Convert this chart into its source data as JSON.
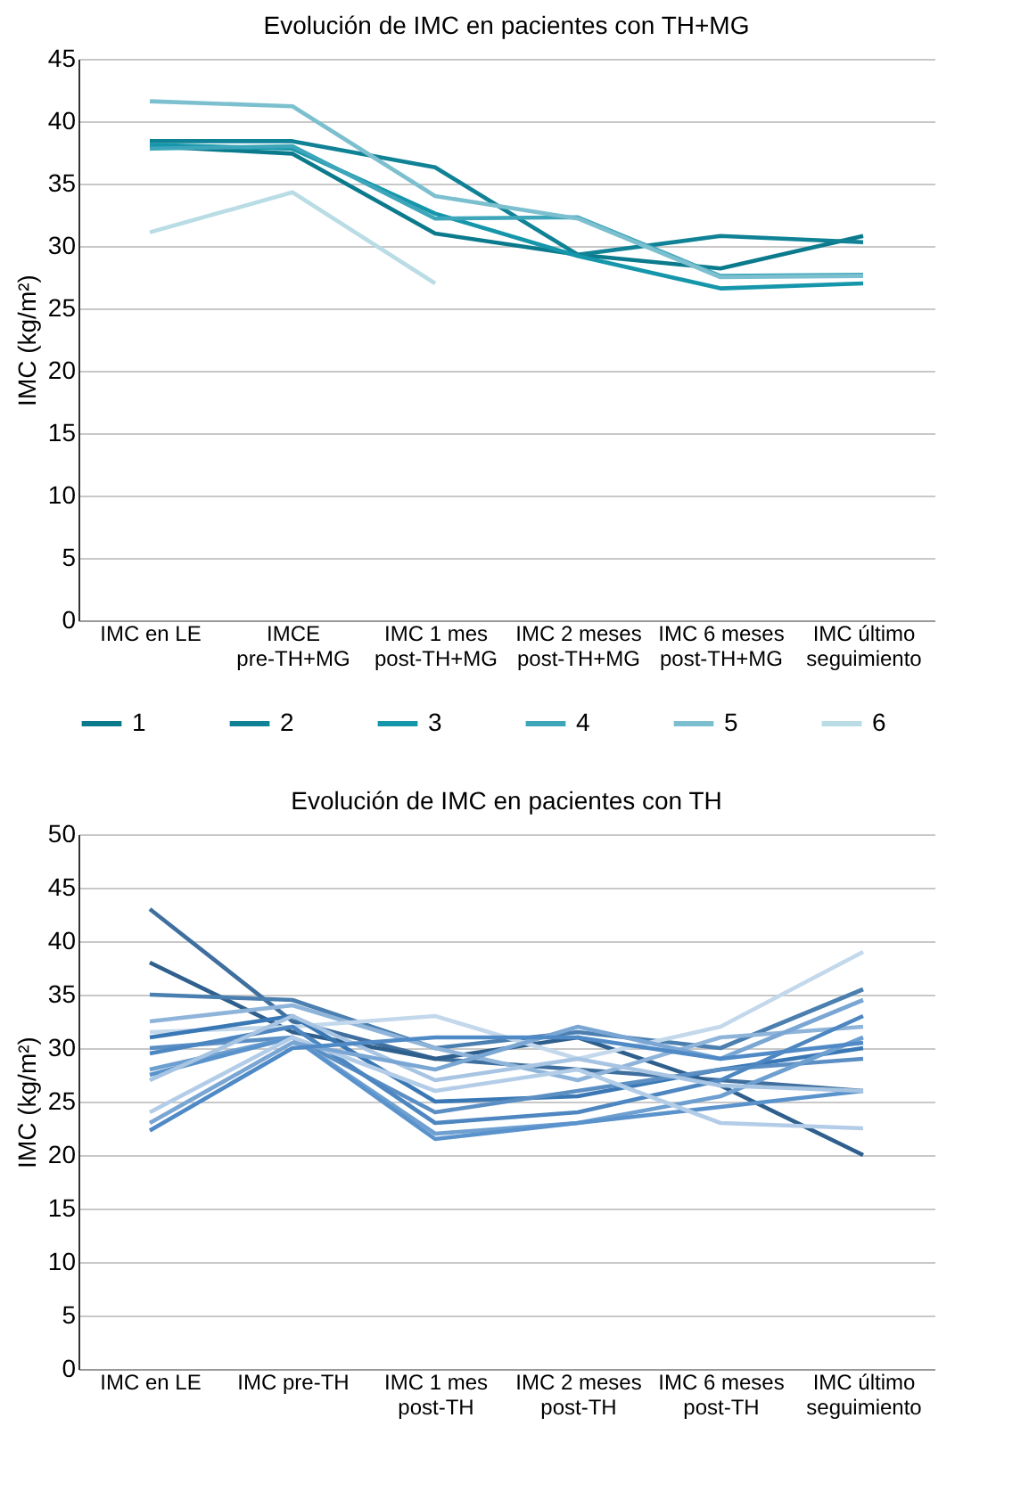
{
  "chart_data": [
    {
      "type": "line",
      "title": "Evolución de IMC en pacientes con TH+MG",
      "ylabel": "IMC (kg/m²)",
      "categories": [
        "IMC en LE",
        "IMCE pre-TH+MG",
        "IMC 1 mes post-TH+MG",
        "IMC 2 meses post-TH+MG",
        "IMC 6 meses post-TH+MG",
        "IMC último seguimiento"
      ],
      "ylim": [
        0,
        45
      ],
      "yticks": [
        0,
        5,
        10,
        15,
        20,
        25,
        30,
        35,
        40,
        45
      ],
      "grid": "y",
      "legend": "bottom",
      "series": [
        {
          "name": "1",
          "color": "#0b7a8c",
          "values": [
            38,
            37.4,
            31,
            29.3,
            28.2,
            30.8
          ]
        },
        {
          "name": "2",
          "color": "#0f8296",
          "values": [
            38.4,
            38.4,
            36.3,
            29.3,
            30.8,
            30.3
          ]
        },
        {
          "name": "3",
          "color": "#1596ab",
          "values": [
            38.1,
            37.8,
            32.6,
            29.2,
            26.6,
            27
          ]
        },
        {
          "name": "4",
          "color": "#3ea6ba",
          "values": [
            37.8,
            38,
            32.2,
            32.3,
            27.6,
            27.7
          ]
        },
        {
          "name": "5",
          "color": "#7cc0cf",
          "values": [
            41.6,
            41.2,
            34,
            32.2,
            27.5,
            27.6
          ]
        },
        {
          "name": "6",
          "color": "#b9dce5",
          "values": [
            31.1,
            34.3,
            27,
            null,
            null,
            null
          ]
        }
      ]
    },
    {
      "type": "line",
      "title": "Evolución de IMC en pacientes con TH",
      "ylabel": "IMC (kg/m²)",
      "categories": [
        "IMC en LE",
        "IMC pre-TH",
        "IMC 1 mes post-TH",
        "IMC 2 meses post-TH",
        "IMC 6 meses post-TH",
        "IMC último seguimiento"
      ],
      "ylim": [
        0,
        50
      ],
      "yticks": [
        0,
        5,
        10,
        15,
        20,
        25,
        30,
        35,
        40,
        45,
        50
      ],
      "grid": "y",
      "series": [
        {
          "color": "#3f6f9e",
          "values": [
            43,
            32.5,
            29,
            28,
            27,
            26
          ]
        },
        {
          "color": "#2f5f8c",
          "values": [
            38,
            31.5,
            29,
            31,
            26.5,
            20
          ]
        },
        {
          "color": "#4a7fb0",
          "values": [
            35,
            34.5,
            30,
            31.5,
            30,
            35.5
          ]
        },
        {
          "color": "#8fb4da",
          "values": [
            32.5,
            34,
            30,
            27,
            31,
            32
          ]
        },
        {
          "color": "#c4d8ec",
          "values": [
            31.5,
            32,
            33,
            29,
            32,
            39
          ]
        },
        {
          "color": "#3a78b5",
          "values": [
            31,
            33,
            25,
            25.5,
            28,
            30
          ]
        },
        {
          "color": "#5b8fc4",
          "values": [
            30,
            31,
            24,
            26,
            28,
            29
          ]
        },
        {
          "color": "#4d86c0",
          "values": [
            29.5,
            32,
            23,
            24,
            27,
            33
          ]
        },
        {
          "color": "#6d9fd0",
          "values": [
            28,
            31,
            22,
            23,
            25.5,
            31
          ]
        },
        {
          "color": "#5a93cc",
          "values": [
            27.5,
            31,
            21.5,
            23,
            24.5,
            26
          ]
        },
        {
          "color": "#a7c4e2",
          "values": [
            27,
            33,
            27,
            29,
            26.5,
            26
          ]
        },
        {
          "color": "#b3cde8",
          "values": [
            24,
            31,
            26,
            28,
            23,
            22.5
          ]
        },
        {
          "color": "#7aa6d4",
          "values": [
            23,
            30.5,
            28,
            32,
            29,
            34.5
          ]
        },
        {
          "color": "#4f8ac6",
          "values": [
            22.3,
            30,
            31,
            31,
            29,
            30.5
          ]
        }
      ]
    }
  ]
}
